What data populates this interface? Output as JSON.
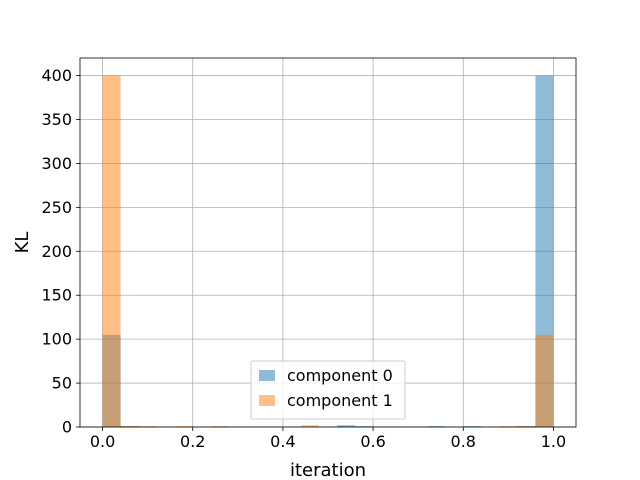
{
  "chart_data": {
    "type": "bar",
    "title": "",
    "xlabel": "iteration",
    "ylabel": "KL",
    "xlim": [
      -0.05,
      1.05
    ],
    "ylim": [
      0,
      420
    ],
    "xticks": [
      0.0,
      0.2,
      0.4,
      0.6,
      0.8,
      1.0
    ],
    "xtick_labels": [
      "0.0",
      "0.2",
      "0.4",
      "0.6",
      "0.8",
      "1.0"
    ],
    "yticks": [
      0,
      50,
      100,
      150,
      200,
      250,
      300,
      350,
      400
    ],
    "ytick_labels": [
      "0",
      "50",
      "100",
      "150",
      "200",
      "250",
      "300",
      "350",
      "400"
    ],
    "grid": true,
    "legend_position": "lower center",
    "bin_width": 0.04,
    "series": [
      {
        "name": "component 0",
        "color": "#1f77b4",
        "opacity": 0.5,
        "bins": [
          {
            "x0": 0.0,
            "x1": 0.04,
            "value": 105
          },
          {
            "x0": 0.04,
            "x1": 0.08,
            "value": 1
          },
          {
            "x0": 0.52,
            "x1": 0.56,
            "value": 2
          },
          {
            "x0": 0.56,
            "x1": 0.6,
            "value": 1
          },
          {
            "x0": 0.72,
            "x1": 0.76,
            "value": 1
          },
          {
            "x0": 0.8,
            "x1": 0.84,
            "value": 1
          },
          {
            "x0": 0.92,
            "x1": 0.96,
            "value": 1
          },
          {
            "x0": 0.96,
            "x1": 1.0,
            "value": 400
          }
        ]
      },
      {
        "name": "component 1",
        "color": "#ff7f0e",
        "opacity": 0.5,
        "bins": [
          {
            "x0": 0.0,
            "x1": 0.04,
            "value": 400
          },
          {
            "x0": 0.04,
            "x1": 0.08,
            "value": 1
          },
          {
            "x0": 0.08,
            "x1": 0.12,
            "value": 1
          },
          {
            "x0": 0.16,
            "x1": 0.2,
            "value": 1
          },
          {
            "x0": 0.24,
            "x1": 0.28,
            "value": 1
          },
          {
            "x0": 0.44,
            "x1": 0.48,
            "value": 2
          },
          {
            "x0": 0.88,
            "x1": 0.92,
            "value": 1
          },
          {
            "x0": 0.92,
            "x1": 0.96,
            "value": 1
          },
          {
            "x0": 0.96,
            "x1": 1.0,
            "value": 105
          }
        ]
      }
    ]
  }
}
